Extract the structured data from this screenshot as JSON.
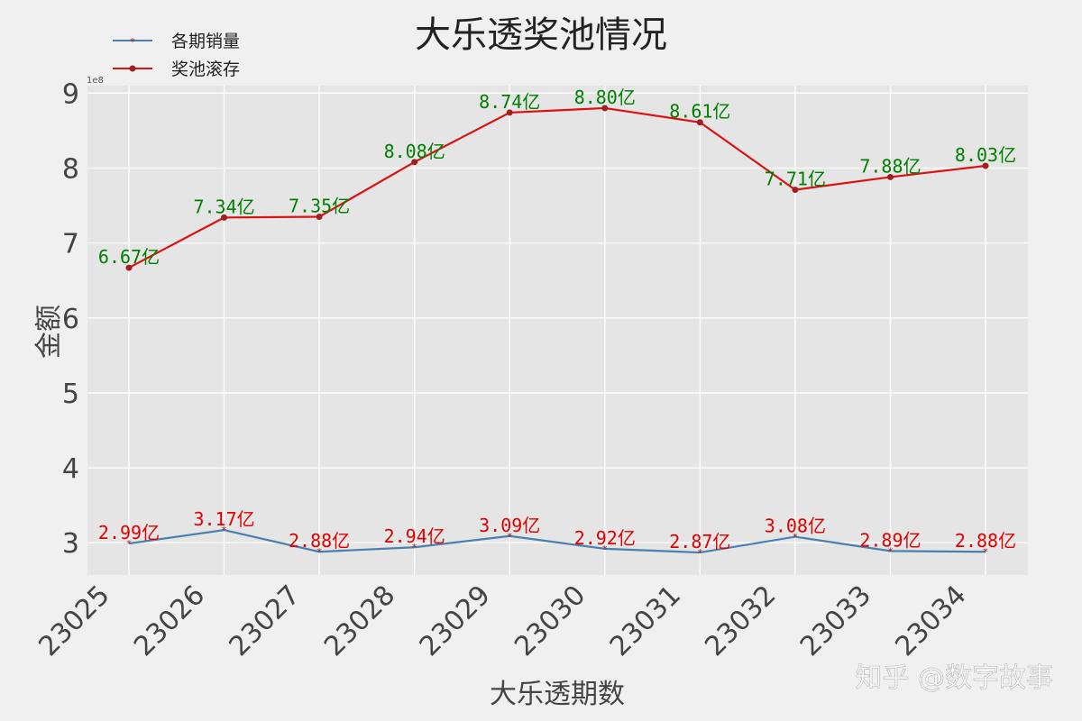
{
  "chart_data": {
    "type": "line",
    "title": "大乐透奖池情况",
    "xlabel": "大乐透期数",
    "ylabel": "金额",
    "y_scale_text": "1e8",
    "categories": [
      "23025",
      "23026",
      "23027",
      "23028",
      "23029",
      "23030",
      "23031",
      "23032",
      "23033",
      "23034"
    ],
    "yticks": [
      "3",
      "4",
      "5",
      "6",
      "7",
      "8",
      "9"
    ],
    "ylim": [
      257000000,
      910000000
    ],
    "grid": true,
    "legend_position": "top-left",
    "series": [
      {
        "name": "各期销量",
        "color": "#4a7fb0",
        "marker": "*",
        "values": [
          299000000,
          317000000,
          288000000,
          294000000,
          309000000,
          292000000,
          287000000,
          308000000,
          289000000,
          288000000
        ],
        "labels": [
          "2.99亿",
          "3.17亿",
          "2.88亿",
          "2.94亿",
          "3.09亿",
          "2.92亿",
          "2.87亿",
          "3.08亿",
          "2.89亿",
          "2.88亿"
        ],
        "label_color": "#e00000"
      },
      {
        "name": "奖池滚存",
        "color": "#dd1111",
        "marker": "o",
        "values": [
          667000000,
          734000000,
          735000000,
          808000000,
          874000000,
          880000000,
          861000000,
          771000000,
          788000000,
          803000000
        ],
        "labels": [
          "6.67亿",
          "7.34亿",
          "7.35亿",
          "8.08亿",
          "8.74亿",
          "8.80亿",
          "8.61亿",
          "7.71亿",
          "7.88亿",
          "8.03亿"
        ],
        "label_color": "#008000"
      }
    ]
  },
  "watermark": "知乎 @数字故事"
}
